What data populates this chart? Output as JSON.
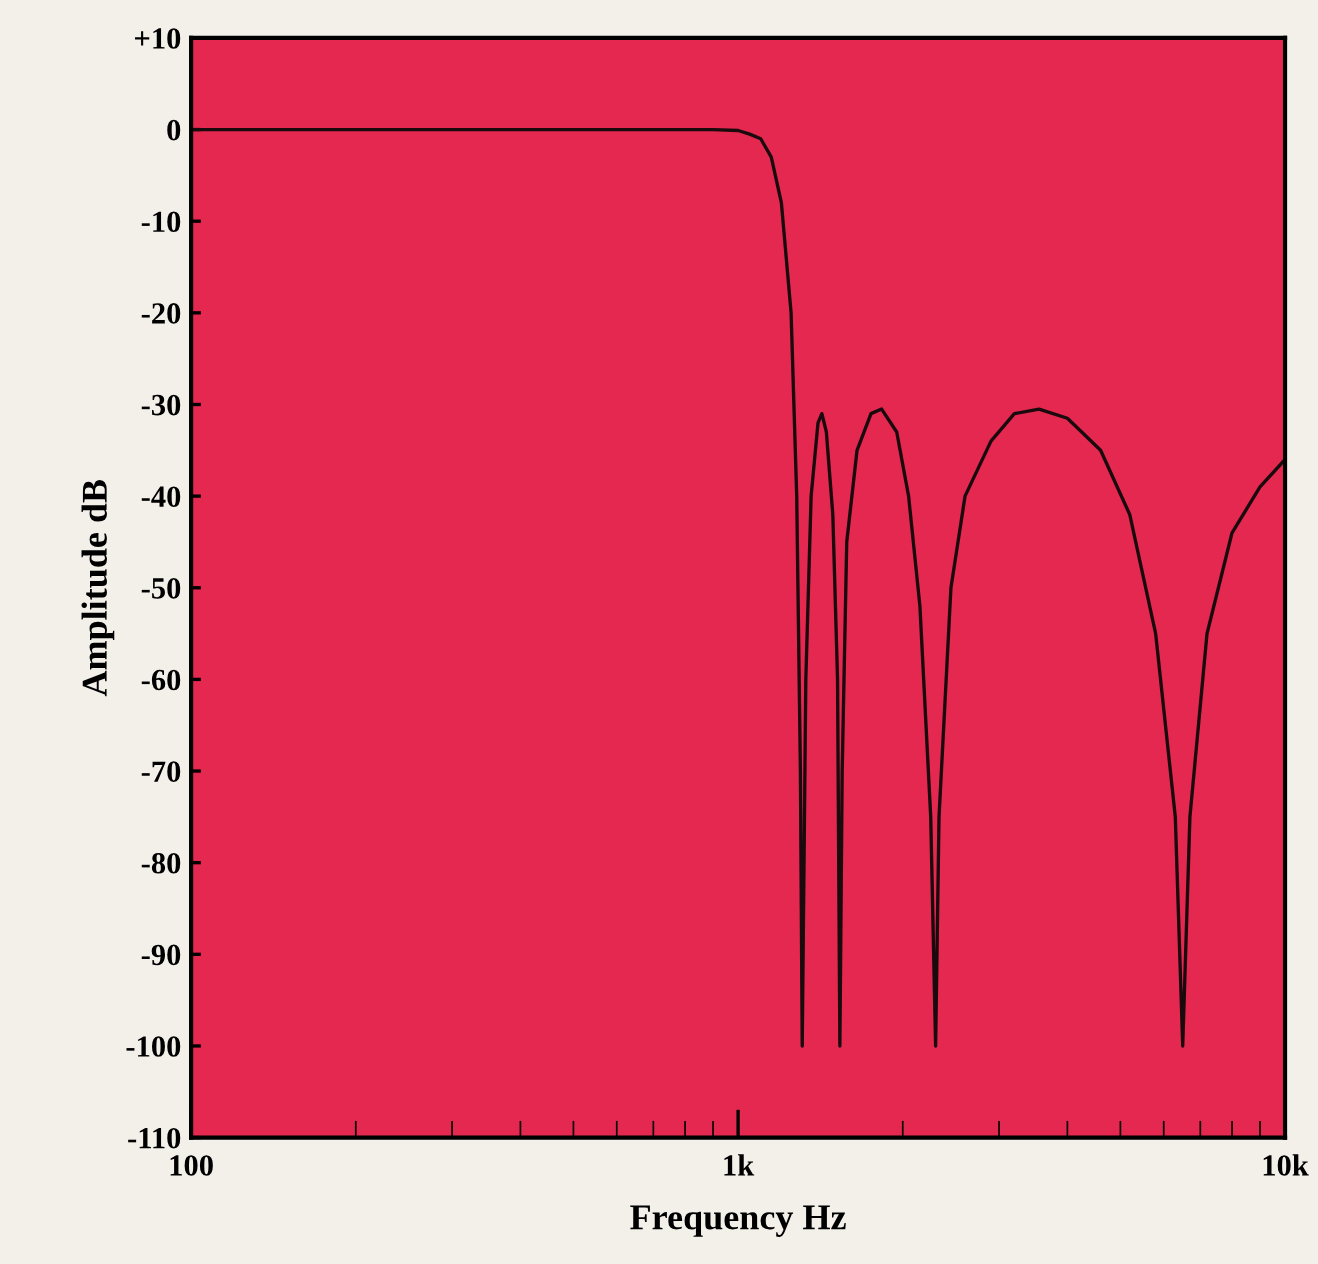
{
  "chart_data": {
    "type": "line",
    "xlabel": "Frequency Hz",
    "ylabel": "Amplitude dB",
    "series": [
      {
        "color": "#1a0a0e",
        "x": [
          100,
          300,
          600,
          900,
          1000,
          1050,
          1100,
          1150,
          1200,
          1250,
          1280,
          1300,
          1310,
          1330,
          1360,
          1400,
          1423,
          1450,
          1490,
          1520,
          1535,
          1550,
          1580,
          1650,
          1750,
          1830,
          1950,
          2050,
          2150,
          2250,
          2297,
          2330,
          2450,
          2600,
          2900,
          3200,
          3550,
          4000,
          4600,
          5200,
          5800,
          6300,
          6500,
          6700,
          7200,
          8000,
          9000,
          10000
        ],
        "values": [
          0,
          0,
          0,
          0,
          -0.1,
          -0.5,
          -1,
          -3,
          -8,
          -20,
          -40,
          -70,
          -100,
          -60,
          -40,
          -32,
          -31,
          -33,
          -42,
          -60,
          -100,
          -70,
          -45,
          -35,
          -31,
          -30.5,
          -33,
          -40,
          -52,
          -75,
          -100,
          -75,
          -50,
          -40,
          -34,
          -31,
          -30.5,
          -31.5,
          -35,
          -42,
          -55,
          -75,
          -100,
          -75,
          -55,
          -44,
          -39,
          -36
        ]
      }
    ],
    "log": "x",
    "xlim": [
      100,
      10000
    ],
    "xticks": [
      100,
      {
        "value": 1000,
        "label": "1k"
      },
      {
        "value": 10000,
        "label": "10k"
      }
    ],
    "ylim": [
      -110,
      10
    ],
    "yticks": [
      {
        "value": 10,
        "label": "+10"
      },
      0,
      -10,
      -20,
      -30,
      -40,
      -50,
      -60,
      -70,
      -80,
      -90,
      -100,
      -110
    ],
    "grid": false,
    "legend": false,
    "marker": "none",
    "line_style": "solid"
  }
}
